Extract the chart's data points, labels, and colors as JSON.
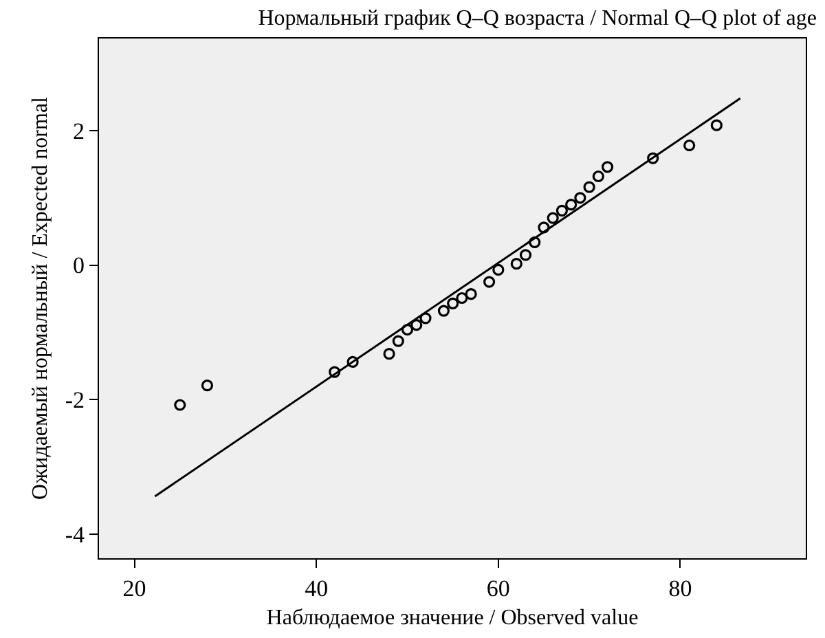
{
  "chart_data": {
    "type": "scatter",
    "title": "Нормальный график Q–Q возраста / Normal Q–Q plot of age",
    "xlabel": "Наблюдаемое значение / Observed value",
    "ylabel": "Ожидаемый нормальный / Expected normal",
    "xlim": [
      16.1,
      93.8
    ],
    "ylim": [
      -4.36,
      3.37
    ],
    "xticks": [
      20,
      40,
      60,
      80
    ],
    "yticks": [
      -4,
      -2,
      0,
      2
    ],
    "grid": false,
    "marker": "circle",
    "series": [
      {
        "color": "#000000",
        "x": [
          25,
          28,
          42,
          44,
          48,
          49,
          50,
          51,
          52,
          54,
          55,
          56,
          57,
          59,
          60,
          62,
          63,
          64,
          65,
          66,
          67,
          68,
          69,
          70,
          71,
          72,
          77,
          81,
          84
        ],
        "values": [
          -2.08,
          -1.79,
          -1.59,
          -1.44,
          -1.32,
          -1.13,
          -0.96,
          -0.89,
          -0.79,
          -0.68,
          -0.57,
          -0.49,
          -0.43,
          -0.25,
          -0.07,
          0.02,
          0.15,
          0.34,
          0.56,
          0.7,
          0.81,
          0.9,
          1.0,
          1.16,
          1.32,
          1.46,
          1.59,
          1.78,
          2.08
        ]
      },
      {
        "type": "line",
        "color": "#000000",
        "line_style": "solid",
        "marker": "none",
        "x": [
          22.25,
          86.6
        ],
        "values": [
          -3.44,
          2.48
        ]
      }
    ]
  }
}
